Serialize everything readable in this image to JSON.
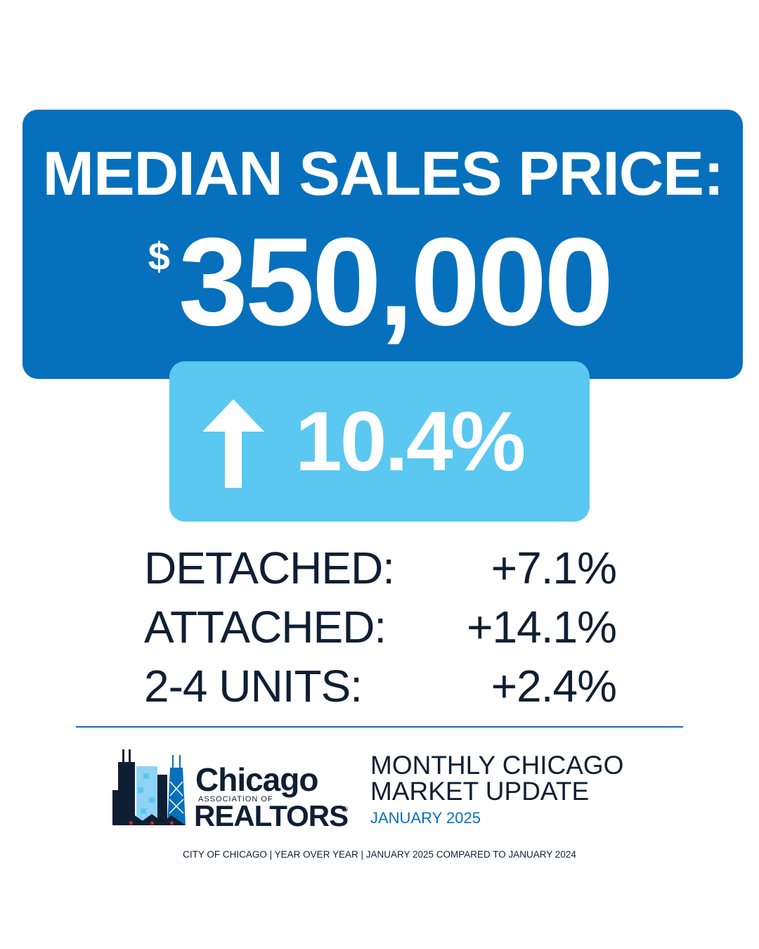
{
  "colors": {
    "primary_blue": "#0670bd",
    "light_blue": "#5ac8f1",
    "navy": "#0f1f33",
    "white": "#ffffff"
  },
  "headline": {
    "title": "MEDIAN SALES PRICE:",
    "currency_symbol": "$",
    "price": "350,000"
  },
  "change": {
    "icon": "arrow-up-icon",
    "value": "10.4%"
  },
  "breakdown": [
    {
      "label": "DETACHED:",
      "value": "+7.1%"
    },
    {
      "label": "ATTACHED:",
      "value": "+14.1%"
    },
    {
      "label": "2-4 UNITS:",
      "value": "+2.4%"
    }
  ],
  "logo": {
    "name": "Chicago",
    "association": "ASSOCIATION OF",
    "realtors": "REALTORS",
    "registered": "®"
  },
  "update": {
    "line1": "MONTHLY CHICAGO",
    "line2": "MARKET UPDATE",
    "date": "JANUARY 2025"
  },
  "footer": "CITY OF CHICAGO | YEAR OVER YEAR | JANUARY 2025 COMPARED TO JANUARY 2024"
}
